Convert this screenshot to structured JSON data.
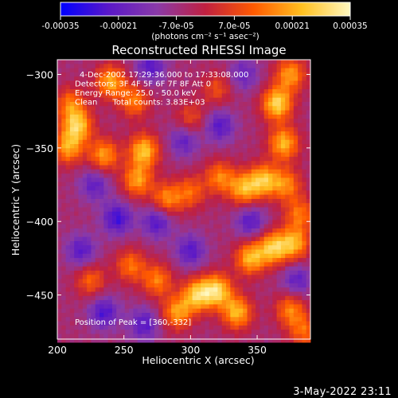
{
  "figure": {
    "date_stamp": "3-May-2022 23:11"
  },
  "colorbar": {
    "tick_labels": [
      "-0.00035",
      "-0.00021",
      "-7.0e-05",
      "7.0e-05",
      "0.00021",
      "0.00035"
    ],
    "tick_values": [
      -0.00035,
      -0.00021,
      -7e-05,
      7e-05,
      0.00021,
      0.00035
    ],
    "range": [
      -0.00035,
      0.00035
    ],
    "unit_label": "(photons cm⁻² s⁻¹ asec⁻²)",
    "colormap": [
      "#0000ff",
      "#5a18c8",
      "#8a3aa8",
      "#c02040",
      "#ff5a00",
      "#ffc020",
      "#fff8c0"
    ]
  },
  "chart_data": {
    "type": "heatmap",
    "title": "Reconstructed RHESSI Image",
    "xlabel": "Heliocentric X (arcsec)",
    "ylabel": "Heliocentric Y (arcsec)",
    "xlim": [
      200,
      390
    ],
    "ylim": [
      -480,
      -290
    ],
    "xticks": [
      200,
      250,
      300,
      350
    ],
    "yticks": [
      -300,
      -350,
      -400,
      -450
    ],
    "grid": false,
    "annotations": [
      "4-Dec-2002 17:29:36.000 to 17:33:08.000",
      "Detectors: 3F 4F 5F 6F 7F 8F Att 0",
      "Energy Range: 25.0 - 50.0 keV",
      "Clean      Total counts: 3.83E+03"
    ],
    "peak_label": "Position of Peak = [360,-332]",
    "peak_position": [
      360,
      -332
    ],
    "total_counts": "3.83E+03",
    "energy_range_kev": [
      25.0,
      50.0
    ],
    "bright_regions": [
      {
        "x": 365,
        "y": -320,
        "level": 0.95
      },
      {
        "x": 375,
        "y": -300,
        "level": 0.7
      },
      {
        "x": 370,
        "y": -347,
        "level": 0.8
      },
      {
        "x": 215,
        "y": -335,
        "level": 0.85
      },
      {
        "x": 208,
        "y": -350,
        "level": 0.7
      },
      {
        "x": 265,
        "y": -352,
        "level": 0.85
      },
      {
        "x": 260,
        "y": -372,
        "level": 0.7
      },
      {
        "x": 282,
        "y": -385,
        "level": 0.65
      },
      {
        "x": 235,
        "y": -355,
        "level": 0.7
      },
      {
        "x": 240,
        "y": -305,
        "level": 0.75
      },
      {
        "x": 258,
        "y": -318,
        "level": 0.6
      },
      {
        "x": 210,
        "y": -320,
        "level": 0.55
      },
      {
        "x": 305,
        "y": -450,
        "level": 0.85
      },
      {
        "x": 320,
        "y": -447,
        "level": 0.9
      },
      {
        "x": 335,
        "y": -462,
        "level": 0.8
      },
      {
        "x": 290,
        "y": -462,
        "level": 0.7
      },
      {
        "x": 275,
        "y": -440,
        "level": 0.6
      },
      {
        "x": 255,
        "y": -430,
        "level": 0.55
      },
      {
        "x": 345,
        "y": -425,
        "level": 0.8
      },
      {
        "x": 362,
        "y": -418,
        "level": 0.85
      },
      {
        "x": 378,
        "y": -415,
        "level": 0.75
      },
      {
        "x": 340,
        "y": -378,
        "level": 0.75
      },
      {
        "x": 355,
        "y": -372,
        "level": 0.8
      },
      {
        "x": 372,
        "y": -375,
        "level": 0.6
      },
      {
        "x": 322,
        "y": -370,
        "level": 0.6
      },
      {
        "x": 300,
        "y": -380,
        "level": 0.5
      },
      {
        "x": 382,
        "y": -395,
        "level": 0.55
      },
      {
        "x": 225,
        "y": -440,
        "level": 0.5
      },
      {
        "x": 375,
        "y": -460,
        "level": 0.6
      },
      {
        "x": 385,
        "y": -475,
        "level": 0.5
      },
      {
        "x": 320,
        "y": -310,
        "level": 0.4
      },
      {
        "x": 300,
        "y": -330,
        "level": 0.4
      }
    ],
    "dark_regions": [
      {
        "x": 245,
        "y": -398,
        "level": -0.6
      },
      {
        "x": 275,
        "y": -400,
        "level": -0.55
      },
      {
        "x": 218,
        "y": -420,
        "level": -0.5
      },
      {
        "x": 300,
        "y": -420,
        "level": -0.5
      },
      {
        "x": 322,
        "y": -335,
        "level": -0.5
      },
      {
        "x": 295,
        "y": -345,
        "level": -0.45
      },
      {
        "x": 235,
        "y": -462,
        "level": -0.55
      },
      {
        "x": 265,
        "y": -470,
        "level": -0.5
      },
      {
        "x": 340,
        "y": -300,
        "level": -0.4
      },
      {
        "x": 270,
        "y": -295,
        "level": -0.5
      },
      {
        "x": 228,
        "y": -375,
        "level": -0.45
      },
      {
        "x": 380,
        "y": -440,
        "level": -0.45
      },
      {
        "x": 345,
        "y": -400,
        "level": -0.5
      }
    ]
  }
}
